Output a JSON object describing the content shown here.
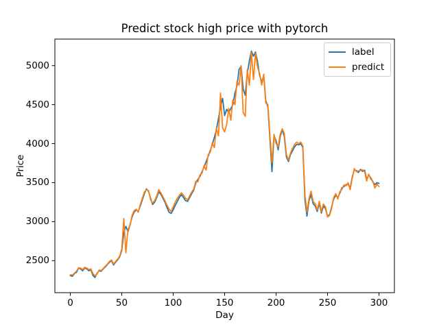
{
  "figure": {
    "title": "Predict stock high price with pytorch"
  },
  "chart_data": {
    "type": "line",
    "title": "Predict stock high price with pytorch",
    "xlabel": "Day",
    "ylabel": "Price",
    "xlim": [
      -15,
      315
    ],
    "ylim": [
      2090,
      5340
    ],
    "x_ticks": [
      0,
      50,
      100,
      150,
      200,
      250,
      300
    ],
    "y_ticks": [
      2500,
      3000,
      3500,
      4000,
      4500,
      5000
    ],
    "grid": false,
    "legend_position": "upper right",
    "x": [
      0,
      2,
      4,
      6,
      8,
      10,
      12,
      14,
      16,
      18,
      20,
      22,
      24,
      26,
      28,
      30,
      32,
      34,
      36,
      38,
      40,
      42,
      44,
      46,
      48,
      50,
      52,
      54,
      56,
      58,
      60,
      62,
      64,
      66,
      68,
      70,
      72,
      74,
      76,
      78,
      80,
      82,
      84,
      86,
      88,
      90,
      92,
      94,
      96,
      98,
      100,
      102,
      104,
      106,
      108,
      110,
      112,
      114,
      116,
      118,
      120,
      122,
      124,
      126,
      128,
      130,
      132,
      134,
      136,
      138,
      140,
      142,
      144,
      146,
      148,
      150,
      152,
      154,
      156,
      158,
      160,
      162,
      164,
      166,
      168,
      170,
      172,
      174,
      176,
      178,
      180,
      182,
      184,
      186,
      188,
      190,
      192,
      194,
      196,
      198,
      200,
      202,
      204,
      206,
      208,
      210,
      212,
      214,
      216,
      218,
      220,
      222,
      224,
      226,
      228,
      230,
      232,
      234,
      236,
      238,
      240,
      242,
      244,
      246,
      248,
      250,
      252,
      254,
      256,
      258,
      260,
      262,
      264,
      266,
      268,
      270,
      272,
      274,
      276,
      278,
      280,
      282,
      284,
      286,
      288,
      290,
      292,
      294,
      296,
      298,
      300
    ],
    "series": [
      {
        "name": "label",
        "color": "#1f77b4",
        "values": [
          2310,
          2300,
          2335,
          2350,
          2405,
          2395,
          2370,
          2405,
          2395,
          2370,
          2385,
          2310,
          2285,
          2340,
          2370,
          2365,
          2395,
          2420,
          2450,
          2480,
          2500,
          2445,
          2480,
          2510,
          2550,
          2630,
          2860,
          2940,
          2870,
          2960,
          3060,
          3120,
          3150,
          3130,
          3200,
          3280,
          3360,
          3420,
          3390,
          3300,
          3220,
          3250,
          3310,
          3380,
          3350,
          3300,
          3250,
          3180,
          3120,
          3105,
          3150,
          3210,
          3260,
          3310,
          3345,
          3310,
          3270,
          3260,
          3310,
          3360,
          3405,
          3500,
          3540,
          3580,
          3640,
          3700,
          3770,
          3840,
          3910,
          3990,
          4080,
          4180,
          4320,
          4470,
          4580,
          4360,
          4440,
          4400,
          4450,
          4500,
          4650,
          4740,
          4950,
          4990,
          4700,
          4620,
          4900,
          5060,
          5185,
          5120,
          5175,
          5050,
          4870,
          4790,
          4870,
          4550,
          4470,
          4060,
          3640,
          4100,
          4040,
          3920,
          4090,
          4180,
          4090,
          3830,
          3770,
          3860,
          3910,
          3960,
          3990,
          3985,
          4000,
          3950,
          3280,
          3070,
          3270,
          3345,
          3230,
          3200,
          3130,
          3235,
          3110,
          3200,
          3165,
          3070,
          3090,
          3190,
          3290,
          3340,
          3310,
          3365,
          3435,
          3450,
          3475,
          3480,
          3430,
          3570,
          3665,
          3655,
          3630,
          3670,
          3645,
          3660,
          3540,
          3600,
          3560,
          3510,
          3475,
          3500,
          3490
        ]
      },
      {
        "name": "predict",
        "color": "#ff7f0e",
        "values": [
          2320,
          2315,
          2340,
          2365,
          2410,
          2405,
          2385,
          2415,
          2405,
          2385,
          2395,
          2335,
          2305,
          2330,
          2380,
          2375,
          2400,
          2430,
          2455,
          2490,
          2510,
          2460,
          2490,
          2520,
          2560,
          2650,
          3040,
          2600,
          2900,
          2950,
          3080,
          3140,
          3160,
          3120,
          3220,
          3300,
          3380,
          3410,
          3400,
          3280,
          3240,
          3270,
          3330,
          3410,
          3370,
          3320,
          3270,
          3210,
          3160,
          3130,
          3190,
          3250,
          3300,
          3340,
          3370,
          3340,
          3300,
          3280,
          3330,
          3380,
          3420,
          3520,
          3510,
          3600,
          3620,
          3720,
          3660,
          3860,
          3890,
          4010,
          3950,
          4200,
          4100,
          4650,
          4200,
          4150,
          4250,
          4450,
          4300,
          4560,
          4500,
          4800,
          4750,
          5000,
          4400,
          4350,
          4950,
          4750,
          5170,
          4820,
          5160,
          4980,
          4900,
          4750,
          4890,
          4520,
          4500,
          4110,
          3760,
          4120,
          4000,
          3960,
          4120,
          4190,
          4130,
          3860,
          3790,
          3880,
          3940,
          3990,
          4020,
          4000,
          4020,
          3970,
          3350,
          3120,
          3300,
          3390,
          3260,
          3230,
          3150,
          3260,
          3130,
          3225,
          3190,
          3060,
          3080,
          3170,
          3310,
          3360,
          3290,
          3385,
          3415,
          3470,
          3460,
          3500,
          3410,
          3555,
          3680,
          3640,
          3650,
          3655,
          3665,
          3640,
          3520,
          3610,
          3545,
          3520,
          3430,
          3480,
          3450
        ]
      }
    ]
  }
}
